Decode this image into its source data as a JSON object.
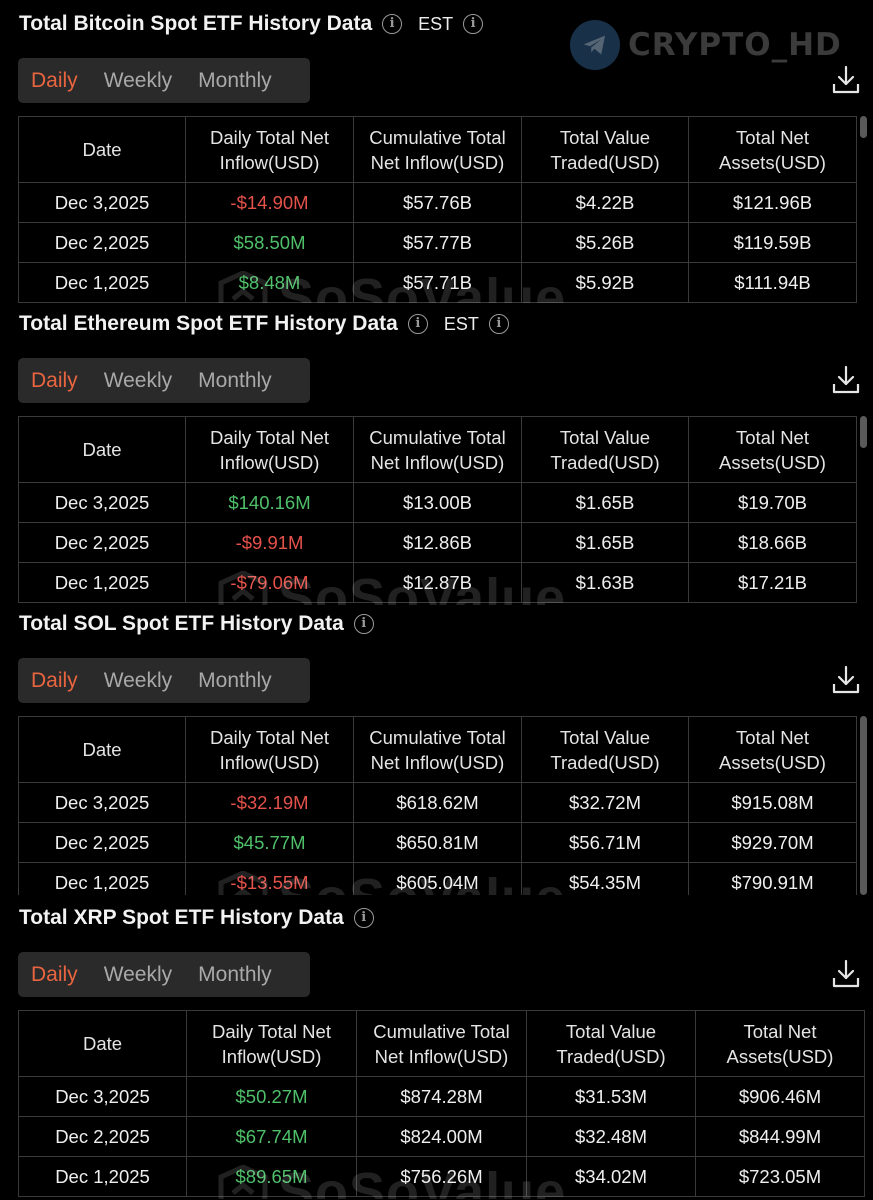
{
  "watermark_brand": "CRYPTO_HD",
  "watermark_table": "SoSoValue",
  "colors": {
    "accent": "#e8653f",
    "negative": "#e5524a",
    "positive": "#4fc06a"
  },
  "tabs": [
    "Daily",
    "Weekly",
    "Monthly"
  ],
  "headers": [
    "Date",
    "Daily Total Net Inflow(USD)",
    "Cumulative Total Net Inflow(USD)",
    "Total Value Traded(USD)",
    "Total Net Assets(USD)"
  ],
  "sections": [
    {
      "title": "Total Bitcoin Spot ETF History Data",
      "est": "EST",
      "rows": [
        {
          "date": "Dec 3,2025",
          "daily": "-$14.90M",
          "sign": "neg",
          "cumulative": "$57.76B",
          "traded": "$4.22B",
          "assets": "$121.96B"
        },
        {
          "date": "Dec 2,2025",
          "daily": "$58.50M",
          "sign": "pos",
          "cumulative": "$57.77B",
          "traded": "$5.26B",
          "assets": "$119.59B"
        },
        {
          "date": "Dec 1,2025",
          "daily": "$8.48M",
          "sign": "pos",
          "cumulative": "$57.71B",
          "traded": "$5.92B",
          "assets": "$111.94B"
        }
      ]
    },
    {
      "title": "Total Ethereum Spot ETF History Data",
      "est": "EST",
      "rows": [
        {
          "date": "Dec 3,2025",
          "daily": "$140.16M",
          "sign": "pos",
          "cumulative": "$13.00B",
          "traded": "$1.65B",
          "assets": "$19.70B"
        },
        {
          "date": "Dec 2,2025",
          "daily": "-$9.91M",
          "sign": "neg",
          "cumulative": "$12.86B",
          "traded": "$1.65B",
          "assets": "$18.66B"
        },
        {
          "date": "Dec 1,2025",
          "daily": "-$79.06M",
          "sign": "neg",
          "cumulative": "$12.87B",
          "traded": "$1.63B",
          "assets": "$17.21B"
        }
      ]
    },
    {
      "title": "Total SOL Spot ETF History Data",
      "est": "",
      "rows": [
        {
          "date": "Dec 3,2025",
          "daily": "-$32.19M",
          "sign": "neg",
          "cumulative": "$618.62M",
          "traded": "$32.72M",
          "assets": "$915.08M"
        },
        {
          "date": "Dec 2,2025",
          "daily": "$45.77M",
          "sign": "pos",
          "cumulative": "$650.81M",
          "traded": "$56.71M",
          "assets": "$929.70M"
        },
        {
          "date": "Dec 1,2025",
          "daily": "-$13.55M",
          "sign": "neg",
          "cumulative": "$605.04M",
          "traded": "$54.35M",
          "assets": "$790.91M"
        }
      ]
    },
    {
      "title": "Total XRP Spot ETF History Data",
      "est": "",
      "rows": [
        {
          "date": "Dec 3,2025",
          "daily": "$50.27M",
          "sign": "pos",
          "cumulative": "$874.28M",
          "traded": "$31.53M",
          "assets": "$906.46M"
        },
        {
          "date": "Dec 2,2025",
          "daily": "$67.74M",
          "sign": "pos",
          "cumulative": "$824.00M",
          "traded": "$32.48M",
          "assets": "$844.99M"
        },
        {
          "date": "Dec 1,2025",
          "daily": "$89.65M",
          "sign": "pos",
          "cumulative": "$756.26M",
          "traded": "$34.02M",
          "assets": "$723.05M"
        }
      ]
    }
  ]
}
